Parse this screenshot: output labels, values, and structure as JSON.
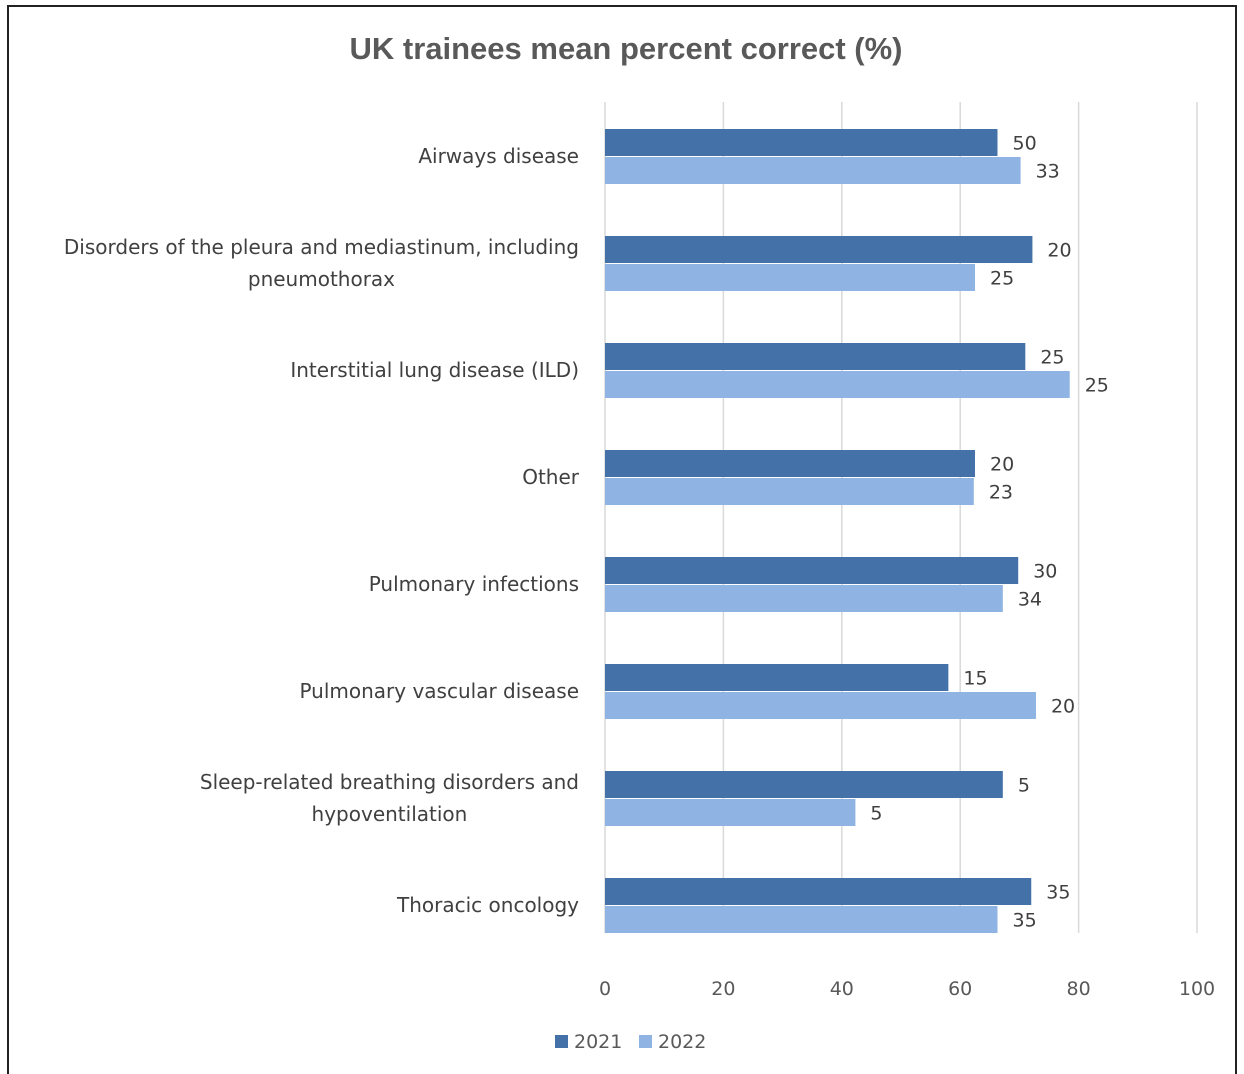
{
  "chart_data": {
    "type": "bar",
    "orientation": "horizontal",
    "title": "UK trainees mean percent correct (%)",
    "categories": [
      [
        "Airways disease"
      ],
      [
        "Disorders of the pleura and mediastinum, including",
        "pneumothorax"
      ],
      [
        "Interstitial lung disease (ILD)"
      ],
      [
        "Other"
      ],
      [
        "Pulmonary infections"
      ],
      [
        "Pulmonary vascular disease"
      ],
      [
        "Sleep-related breathing disorders and",
        "hypoventilation"
      ],
      [
        "Thoracic oncology"
      ]
    ],
    "series": [
      {
        "name": "2021",
        "color": "#4472a8",
        "values": [
          66.3,
          72.2,
          71.0,
          62.5,
          69.8,
          58.0,
          67.2,
          72.0
        ],
        "data_labels": [
          "50",
          "20",
          "25",
          "20",
          "30",
          "15",
          "5",
          "35"
        ]
      },
      {
        "name": "2022",
        "color": "#8fb4e3",
        "values": [
          70.2,
          62.5,
          78.5,
          62.3,
          67.2,
          72.8,
          42.3,
          66.3
        ],
        "data_labels": [
          "33",
          "25",
          "25",
          "23",
          "34",
          "20",
          "5",
          "35"
        ]
      }
    ],
    "xlim": [
      0,
      100
    ],
    "xticks": [
      "0",
      "20",
      "40",
      "60",
      "80",
      "100"
    ],
    "grid": true,
    "legend": "bottom-center"
  }
}
